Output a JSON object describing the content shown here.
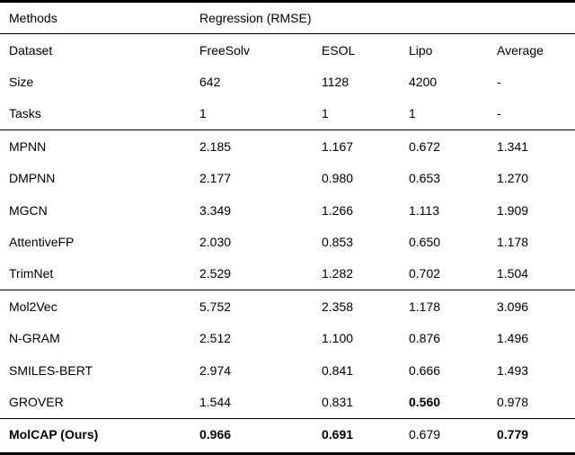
{
  "colors": {
    "background": "#ffffff",
    "text": "#000000",
    "rule": "#000000"
  },
  "table": {
    "title_row": {
      "label": "Methods",
      "span": "Regression (RMSE)"
    },
    "sections": [
      {
        "rows": [
          {
            "label": "Dataset",
            "values": [
              "FreeSolv",
              "ESOL",
              "Lipo",
              "Average"
            ]
          },
          {
            "label": "Size",
            "values": [
              "642",
              "1128",
              "4200",
              "-"
            ]
          },
          {
            "label": "Tasks",
            "values": [
              "1",
              "1",
              "1",
              "-"
            ]
          }
        ]
      },
      {
        "rows": [
          {
            "label": "MPNN",
            "values": [
              "2.185",
              "1.167",
              "0.672",
              "1.341"
            ]
          },
          {
            "label": "DMPNN",
            "values": [
              "2.177",
              "0.980",
              "0.653",
              "1.270"
            ]
          },
          {
            "label": "MGCN",
            "values": [
              "3.349",
              "1.266",
              "1.113",
              "1.909"
            ]
          },
          {
            "label": "AttentiveFP",
            "values": [
              "2.030",
              "0.853",
              "0.650",
              "1.178"
            ]
          },
          {
            "label": "TrimNet",
            "values": [
              "2.529",
              "1.282",
              "0.702",
              "1.504"
            ]
          }
        ]
      },
      {
        "rows": [
          {
            "label": "Mol2Vec",
            "values": [
              "5.752",
              "2.358",
              "1.178",
              "3.096"
            ]
          },
          {
            "label": "N-GRAM",
            "values": [
              "2.512",
              "1.100",
              "0.876",
              "1.496"
            ]
          },
          {
            "label": "SMILES-BERT",
            "values": [
              "2.974",
              "0.841",
              "0.666",
              "1.493"
            ]
          },
          {
            "label": "GROVER",
            "values": [
              "1.544",
              "0.831",
              "0.560",
              "0.978"
            ],
            "bold": [
              false,
              false,
              true,
              false
            ]
          }
        ]
      },
      {
        "rows": [
          {
            "label": "MolCAP (Ours)",
            "bold_label": true,
            "values": [
              "0.966",
              "0.691",
              "0.679",
              "0.779"
            ],
            "bold": [
              true,
              true,
              false,
              true
            ]
          }
        ]
      }
    ]
  }
}
